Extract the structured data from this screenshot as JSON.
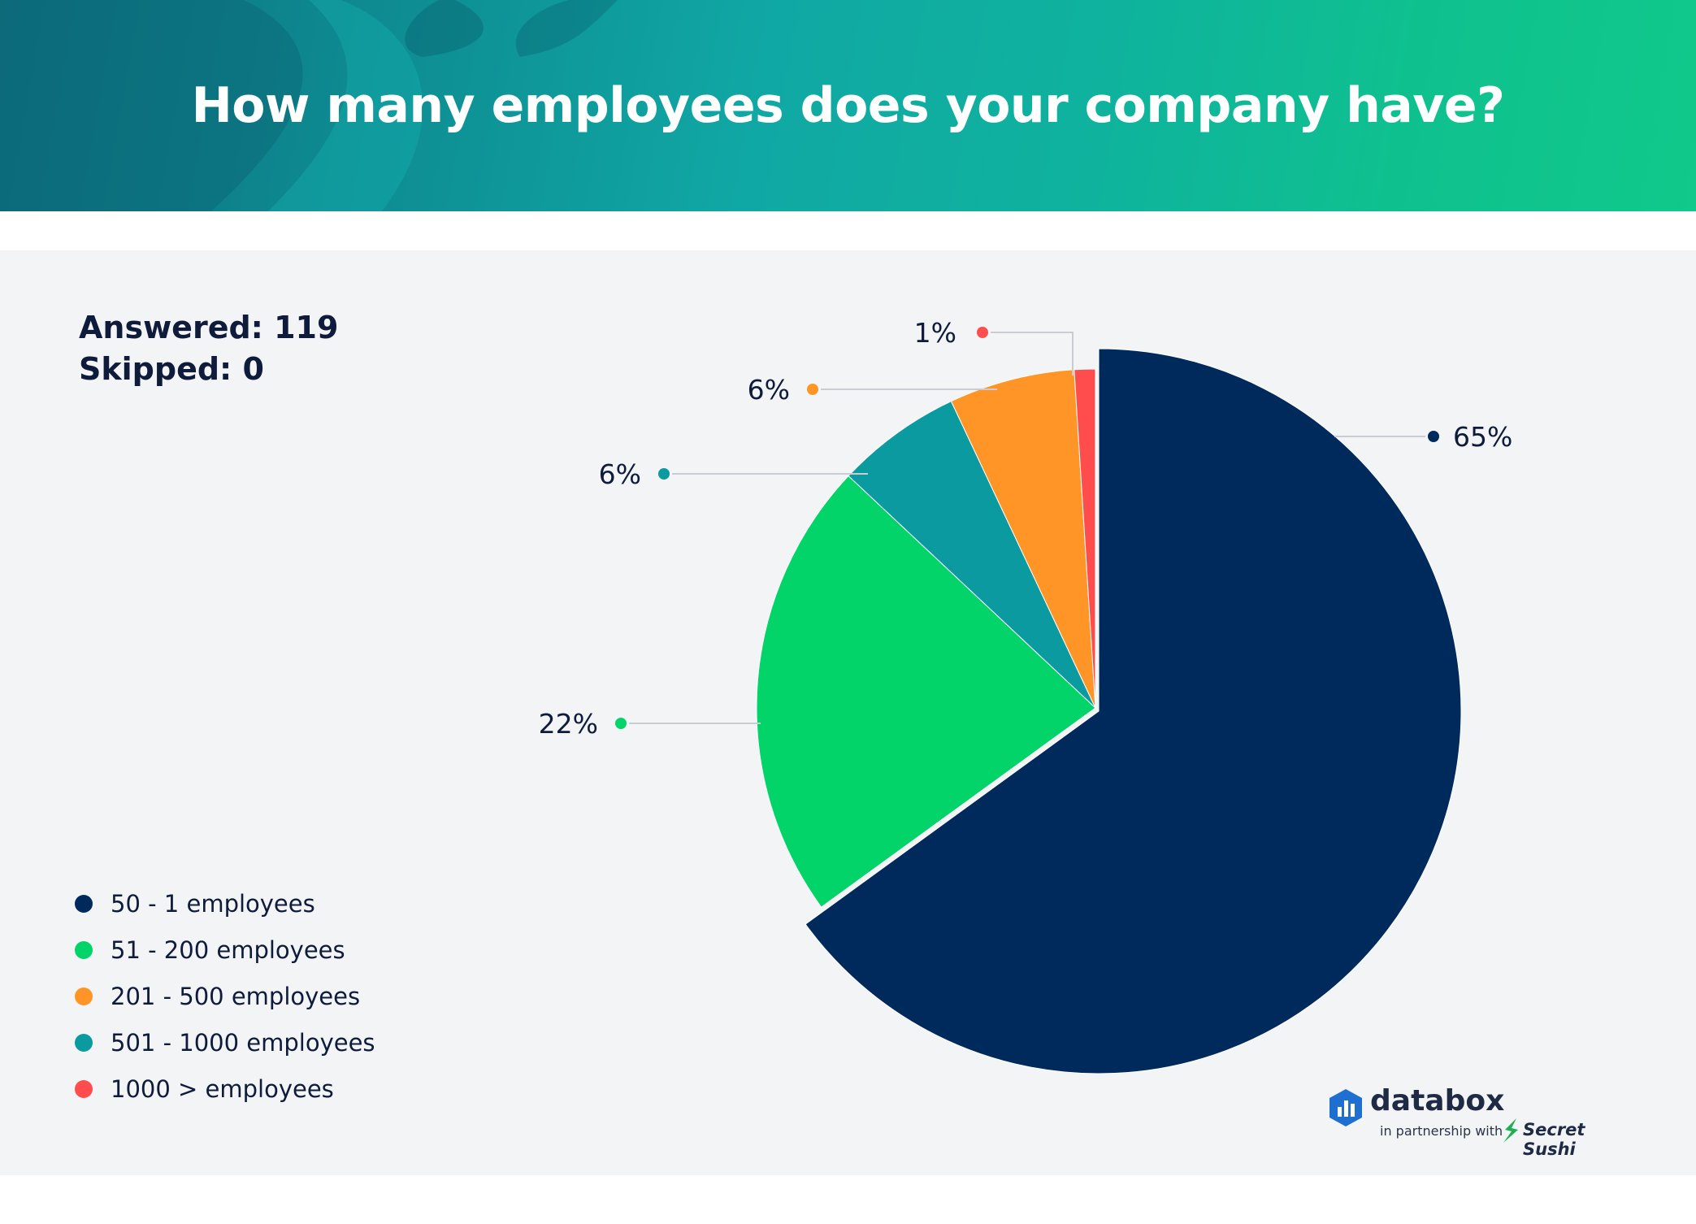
{
  "title": "How many employees does your company have?",
  "stats": {
    "answered": "Answered: 119",
    "skipped": "Skipped: 0"
  },
  "chart_data": {
    "type": "pie",
    "start_angle": "12 o'clock",
    "direction": "clockwise",
    "slices": [
      {
        "label": "50 - 1 employees",
        "value": 65,
        "display": "65%",
        "color": "#002a5c"
      },
      {
        "label": "51 - 200 employees",
        "value": 22,
        "display": "22%",
        "color": "#02d469"
      },
      {
        "label": "501 - 1000 employees",
        "value": 6,
        "display": "6%",
        "color": "#0a9aa0"
      },
      {
        "label": "201 - 500 employees",
        "value": 6,
        "display": "6%",
        "color": "#ff9526"
      },
      {
        "label": "1000 > employees",
        "value": 1,
        "display": "1%",
        "color": "#ff4d4d"
      }
    ],
    "legend": [
      {
        "label": "50 - 1 employees",
        "color": "#002a5c"
      },
      {
        "label": "51 - 200 employees",
        "color": "#02d469"
      },
      {
        "label": "201 - 500 employees",
        "color": "#ff9526"
      },
      {
        "label": "501 - 1000 employees",
        "color": "#0a9aa0"
      },
      {
        "label": "1000 > employees",
        "color": "#ff4d4d"
      }
    ],
    "legend_position": "bottom-left"
  },
  "branding": {
    "logo": "databox",
    "partner_text": "in partnership with",
    "partner": "Secret Sushi",
    "logo_icon": "databox-logo-icon",
    "partner_icon": "secret-sushi-logo-icon"
  }
}
